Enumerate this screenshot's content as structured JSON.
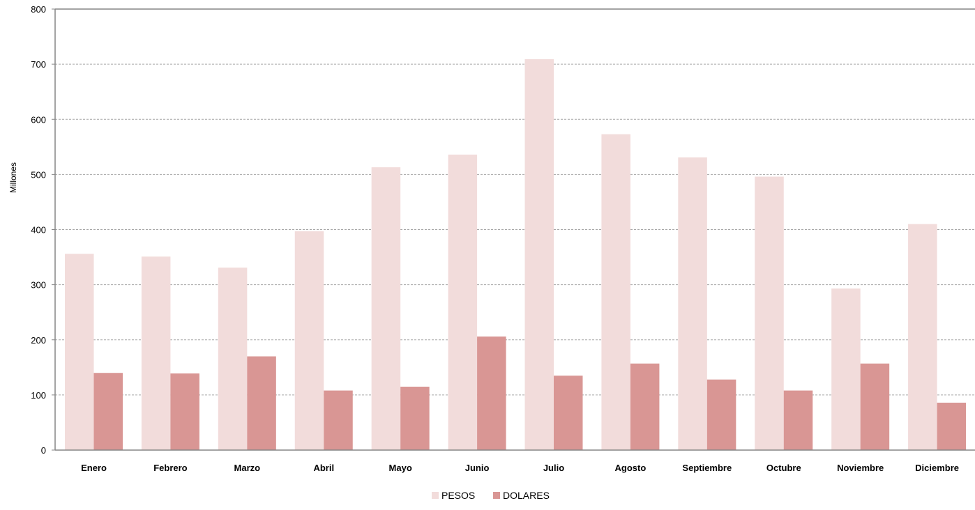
{
  "chart_data": {
    "type": "bar",
    "title": "",
    "xlabel": "",
    "ylabel": "Millones",
    "ylim": [
      0,
      800
    ],
    "yticks": [
      0,
      100,
      200,
      300,
      400,
      500,
      600,
      700,
      800
    ],
    "grid": true,
    "legend_position": "bottom",
    "categories": [
      "Enero",
      "Febrero",
      "Marzo",
      "Abril",
      "Mayo",
      "Junio",
      "Julio",
      "Agosto",
      "Septiembre",
      "Octubre",
      "Noviembre",
      "Diciembre"
    ],
    "series": [
      {
        "name": "PESOS",
        "color": "#f2dcdb",
        "values": [
          356,
          351,
          331,
          397,
          513,
          536,
          709,
          573,
          531,
          496,
          293,
          410
        ]
      },
      {
        "name": "DOLARES",
        "color": "#d99694",
        "values": [
          140,
          139,
          170,
          108,
          115,
          206,
          135,
          157,
          128,
          108,
          157,
          86
        ]
      }
    ]
  }
}
